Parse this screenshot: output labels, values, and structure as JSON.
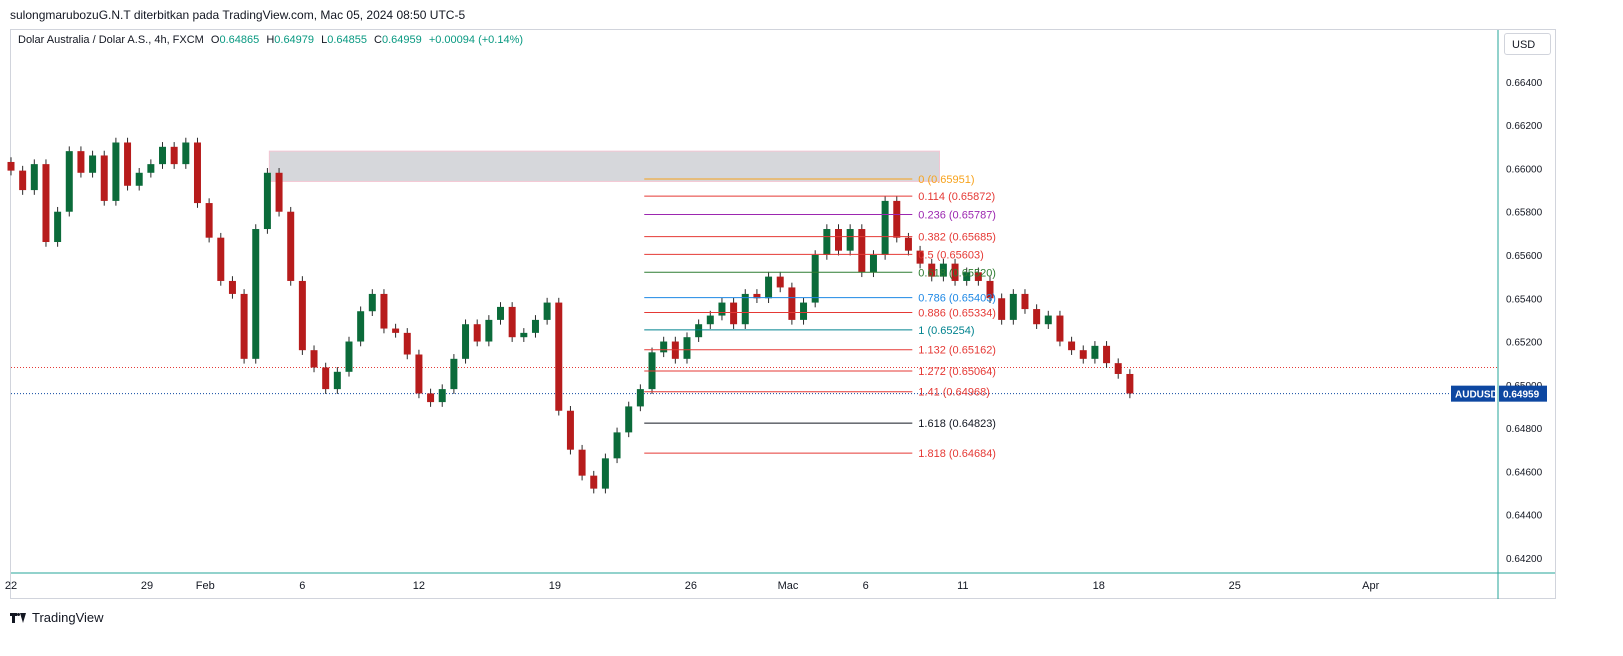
{
  "header": {
    "published_line": "sulongmarubozuG.N.T diterbitkan pada TradingView.com, Mac 05, 2024 08:50 UTC-5"
  },
  "legend": {
    "symbol": "Dolar Australia / Dolar A.S., 4h, FXCM",
    "o_label": "O",
    "o_value": "0.64865",
    "h_label": "H",
    "h_value": "0.64979",
    "l_label": "L",
    "l_value": "0.64855",
    "c_label": "C",
    "c_value": "0.64959",
    "change": "+0.00094 (+0.14%)"
  },
  "currency_button": "USD",
  "branding": "TradingView",
  "colors": {
    "up": "#0b6b3a",
    "down": "#b71c1c",
    "axis": "#131722",
    "accent_axis": "#2962ff",
    "price_label_bg": "#0d47a1"
  },
  "chart_data": {
    "type": "candlestick",
    "symbol": "AUDUSD",
    "timeframe": "4h",
    "y_axis": {
      "ticks": [
        "0.66400",
        "0.66200",
        "0.66000",
        "0.65800",
        "0.65600",
        "0.65400",
        "0.65200",
        "0.65000",
        "0.64800",
        "0.64600",
        "0.64400",
        "0.64200"
      ],
      "ylim": [
        0.6413,
        0.6664
      ]
    },
    "x_axis": {
      "ticks": [
        {
          "label": "22",
          "day": 0
        },
        {
          "label": "29",
          "day": 7
        },
        {
          "label": "Feb",
          "day": 10
        },
        {
          "label": "6",
          "day": 15
        },
        {
          "label": "12",
          "day": 21
        },
        {
          "label": "19",
          "day": 28
        },
        {
          "label": "26",
          "day": 35
        },
        {
          "label": "Mac",
          "day": 40
        },
        {
          "label": "6",
          "day": 44
        },
        {
          "label": "11",
          "day": 49
        },
        {
          "label": "18",
          "day": 56
        },
        {
          "label": "25",
          "day": 63
        },
        {
          "label": "Apr",
          "day": 70
        }
      ],
      "xlim": [
        0,
        76.5
      ]
    },
    "last_price": {
      "symbol": "AUDUSD",
      "value": "0.64959"
    },
    "red_dotted_level": 0.6508,
    "supply_zone": {
      "x_start_day": 13.3,
      "x_end_day": 47.8,
      "y_low": 0.6594,
      "y_high": 0.6608
    },
    "fibonacci": {
      "x_start_day": 32.6,
      "x_end_day": 46.4,
      "levels": [
        {
          "label": "0 (0.65951)",
          "value": 0.65951,
          "color": "#f7a21b"
        },
        {
          "label": "0.114 (0.65872)",
          "value": 0.65872,
          "color": "#e53935"
        },
        {
          "label": "0.236 (0.65787)",
          "value": 0.65787,
          "color": "#9c27b0"
        },
        {
          "label": "0.382 (0.65685)",
          "value": 0.65685,
          "color": "#e53935"
        },
        {
          "label": "0.5 (0.65603)",
          "value": 0.65603,
          "color": "#e53935"
        },
        {
          "label": "0.618 (0.65520)",
          "value": 0.6552,
          "color": "#2e7d32"
        },
        {
          "label": "0.786 (0.65403)",
          "value": 0.65403,
          "color": "#1e88e5"
        },
        {
          "label": "0.886 (0.65334)",
          "value": 0.65334,
          "color": "#e53935"
        },
        {
          "label": "1 (0.65254)",
          "value": 0.65254,
          "color": "#00838f"
        },
        {
          "label": "1.132 (0.65162)",
          "value": 0.65162,
          "color": "#e53935"
        },
        {
          "label": "1.272 (0.65064)",
          "value": 0.65064,
          "color": "#e53935"
        },
        {
          "label": "1.41 (0.64968)",
          "value": 0.64968,
          "color": "#e53935"
        },
        {
          "label": "1.618 (0.64823)",
          "value": 0.64823,
          "color": "#131722"
        },
        {
          "label": "1.818 (0.64684)",
          "value": 0.64684,
          "color": "#e53935"
        }
      ]
    },
    "candles": [
      {
        "t": 0.0,
        "c": 0.6599
      },
      {
        "t": 0.6,
        "c": 0.659
      },
      {
        "t": 1.2,
        "c": 0.6602
      },
      {
        "t": 1.8,
        "c": 0.6566
      },
      {
        "t": 2.4,
        "c": 0.658
      },
      {
        "t": 3.0,
        "c": 0.6608
      },
      {
        "t": 3.6,
        "c": 0.6598
      },
      {
        "t": 4.2,
        "c": 0.6606
      },
      {
        "t": 4.8,
        "c": 0.6585
      },
      {
        "t": 5.4,
        "c": 0.6612
      },
      {
        "t": 6.0,
        "c": 0.6592
      },
      {
        "t": 6.6,
        "c": 0.6598
      },
      {
        "t": 7.2,
        "c": 0.6602
      },
      {
        "t": 7.8,
        "c": 0.661
      },
      {
        "t": 8.4,
        "c": 0.6602
      },
      {
        "t": 9.0,
        "c": 0.6612
      },
      {
        "t": 9.6,
        "c": 0.6584
      },
      {
        "t": 10.2,
        "c": 0.6568
      },
      {
        "t": 10.8,
        "c": 0.6548
      },
      {
        "t": 11.4,
        "c": 0.6542
      },
      {
        "t": 12.0,
        "c": 0.6512
      },
      {
        "t": 12.6,
        "c": 0.6572
      },
      {
        "t": 13.2,
        "c": 0.6598
      },
      {
        "t": 13.8,
        "c": 0.658
      },
      {
        "t": 14.4,
        "c": 0.6548
      },
      {
        "t": 15.0,
        "c": 0.6516
      },
      {
        "t": 15.6,
        "c": 0.6508
      },
      {
        "t": 16.2,
        "c": 0.6498
      },
      {
        "t": 16.8,
        "c": 0.6506
      },
      {
        "t": 17.4,
        "c": 0.652
      },
      {
        "t": 18.0,
        "c": 0.6534
      },
      {
        "t": 18.6,
        "c": 0.6542
      },
      {
        "t": 19.2,
        "c": 0.6526
      },
      {
        "t": 19.8,
        "c": 0.6524
      },
      {
        "t": 20.4,
        "c": 0.6514
      },
      {
        "t": 21.0,
        "c": 0.6496
      },
      {
        "t": 21.6,
        "c": 0.6492
      },
      {
        "t": 22.2,
        "c": 0.6498
      },
      {
        "t": 22.8,
        "c": 0.6512
      },
      {
        "t": 23.4,
        "c": 0.6528
      },
      {
        "t": 24.0,
        "c": 0.652
      },
      {
        "t": 24.6,
        "c": 0.653
      },
      {
        "t": 25.2,
        "c": 0.6536
      },
      {
        "t": 25.8,
        "c": 0.6522
      },
      {
        "t": 26.4,
        "c": 0.6524
      },
      {
        "t": 27.0,
        "c": 0.653
      },
      {
        "t": 27.6,
        "c": 0.6538
      },
      {
        "t": 28.2,
        "c": 0.6488
      },
      {
        "t": 28.8,
        "c": 0.647
      },
      {
        "t": 29.4,
        "c": 0.6458
      },
      {
        "t": 30.0,
        "c": 0.6452
      },
      {
        "t": 30.6,
        "c": 0.6466
      },
      {
        "t": 31.2,
        "c": 0.6478
      },
      {
        "t": 31.8,
        "c": 0.649
      },
      {
        "t": 32.4,
        "c": 0.6498
      },
      {
        "t": 33.0,
        "c": 0.6515
      },
      {
        "t": 33.6,
        "c": 0.652
      },
      {
        "t": 34.2,
        "c": 0.6512
      },
      {
        "t": 34.8,
        "c": 0.6522
      },
      {
        "t": 35.4,
        "c": 0.6528
      },
      {
        "t": 36.0,
        "c": 0.6532
      },
      {
        "t": 36.6,
        "c": 0.6538
      },
      {
        "t": 37.2,
        "c": 0.6528
      },
      {
        "t": 37.8,
        "c": 0.6542
      },
      {
        "t": 38.4,
        "c": 0.654
      },
      {
        "t": 39.0,
        "c": 0.655
      },
      {
        "t": 39.6,
        "c": 0.6545
      },
      {
        "t": 40.2,
        "c": 0.653
      },
      {
        "t": 40.8,
        "c": 0.6538
      },
      {
        "t": 41.4,
        "c": 0.656
      },
      {
        "t": 42.0,
        "c": 0.6572
      },
      {
        "t": 42.6,
        "c": 0.6562
      },
      {
        "t": 43.2,
        "c": 0.6572
      },
      {
        "t": 43.8,
        "c": 0.6552
      },
      {
        "t": 44.4,
        "c": 0.656
      },
      {
        "t": 45.0,
        "c": 0.6585
      },
      {
        "t": 45.6,
        "c": 0.6568
      },
      {
        "t": 46.2,
        "c": 0.6562
      },
      {
        "t": 46.8,
        "c": 0.6556
      },
      {
        "t": 47.4,
        "c": 0.655
      },
      {
        "t": 48.0,
        "c": 0.6556
      },
      {
        "t": 48.6,
        "c": 0.6548
      },
      {
        "t": 49.2,
        "c": 0.6552
      },
      {
        "t": 49.8,
        "c": 0.6548
      },
      {
        "t": 50.4,
        "c": 0.654
      },
      {
        "t": 51.0,
        "c": 0.653
      },
      {
        "t": 51.6,
        "c": 0.6542
      },
      {
        "t": 52.2,
        "c": 0.6535
      },
      {
        "t": 52.8,
        "c": 0.6528
      },
      {
        "t": 53.4,
        "c": 0.6532
      },
      {
        "t": 54.0,
        "c": 0.652
      },
      {
        "t": 54.6,
        "c": 0.6516
      },
      {
        "t": 55.2,
        "c": 0.6512
      },
      {
        "t": 55.8,
        "c": 0.6518
      },
      {
        "t": 56.4,
        "c": 0.651
      },
      {
        "t": 57.0,
        "c": 0.6505
      },
      {
        "t": 57.6,
        "c": 0.6496
      }
    ]
  }
}
